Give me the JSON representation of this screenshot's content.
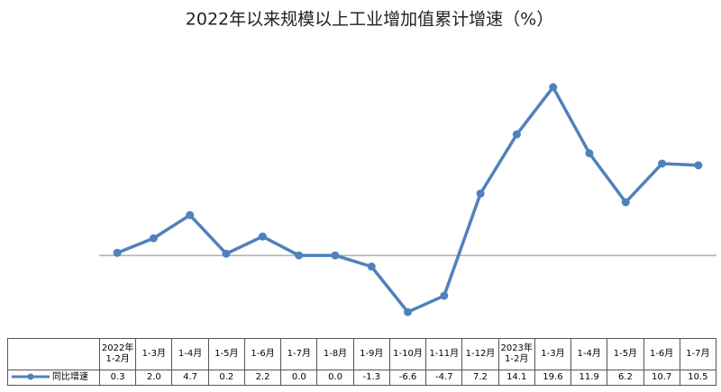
{
  "chart_data": {
    "type": "line",
    "title": "2022年以来规模以上工业增加值累计增速（%）",
    "categories": [
      "2022年1-2月",
      "1-3月",
      "1-4月",
      "1-5月",
      "1-6月",
      "1-7月",
      "1-8月",
      "1-9月",
      "1-10月",
      "1-11月",
      "1-12月",
      "2023年1-2月",
      "1-3月",
      "1-4月",
      "1-5月",
      "1-6月",
      "1-7月"
    ],
    "series": [
      {
        "name": "同比增速",
        "color": "#4f81bd",
        "values": [
          0.3,
          2.0,
          4.7,
          0.2,
          2.2,
          0.0,
          0.0,
          -1.3,
          -6.6,
          -4.7,
          7.2,
          14.1,
          19.6,
          11.9,
          6.2,
          10.7,
          10.5
        ],
        "value_labels": [
          "0.3",
          "2.0",
          "4.7",
          "0.2",
          "2.2",
          "0.0",
          "0.0",
          "-1.3",
          "-6.6",
          "-4.7",
          "7.2",
          "14.1",
          "19.6",
          "11.9",
          "6.2",
          "10.7",
          "10.5"
        ]
      }
    ],
    "ylim": [
      -9,
      24
    ]
  }
}
